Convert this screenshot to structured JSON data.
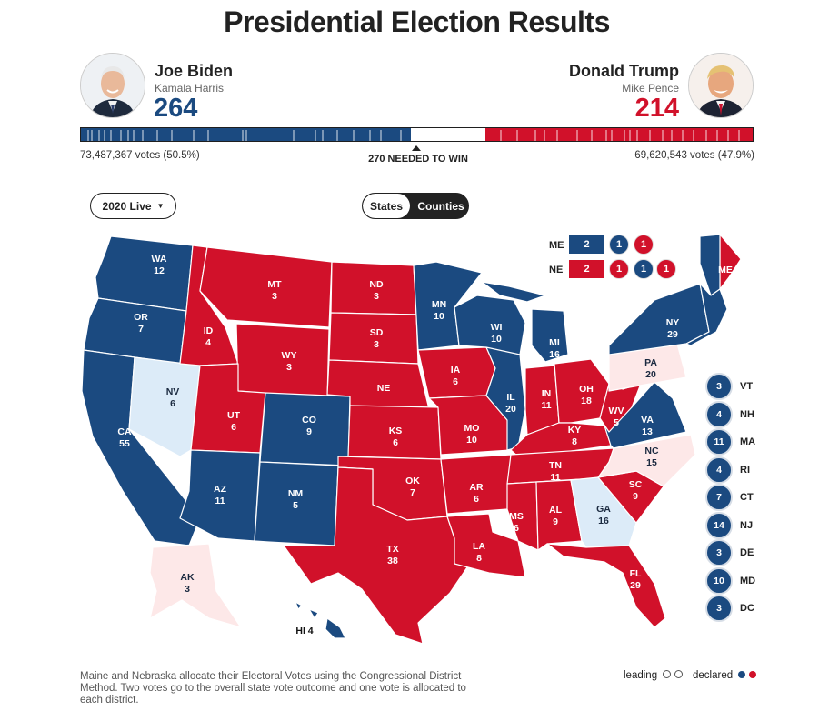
{
  "title": "Presidential Election Results",
  "colors": {
    "dem": "#1b4a80",
    "rep": "#d1112a",
    "dem_leading": "#dcebf8",
    "rep_leading": "#fde8e8"
  },
  "biden": {
    "name": "Joe Biden",
    "vp": "Kamala Harris",
    "ev": "264",
    "popular": "73,487,367 votes (50.5%)",
    "avatar_icon": "biden-portrait"
  },
  "trump": {
    "name": "Donald Trump",
    "vp": "Mike Pence",
    "ev": "214",
    "popular": "69,620,543 votes (47.9%)",
    "avatar_icon": "trump-portrait"
  },
  "votebar": {
    "dem_ev": 264,
    "rep_ev": 214,
    "total": 538,
    "needed_label": "270 NEEDED TO WIN"
  },
  "controls": {
    "year_select": "2020 Live",
    "toggle_states": "States",
    "toggle_counties": "Counties"
  },
  "maine_districts": {
    "label": "ME",
    "at_large": "2",
    "districts": [
      "1",
      "1"
    ]
  },
  "nebraska_districts": {
    "label": "NE",
    "at_large": "2",
    "districts": [
      "1",
      "1",
      "1"
    ]
  },
  "small_states": [
    {
      "ev": "3",
      "abbr": "VT"
    },
    {
      "ev": "4",
      "abbr": "NH"
    },
    {
      "ev": "11",
      "abbr": "MA"
    },
    {
      "ev": "4",
      "abbr": "RI"
    },
    {
      "ev": "7",
      "abbr": "CT"
    },
    {
      "ev": "14",
      "abbr": "NJ"
    },
    {
      "ev": "3",
      "abbr": "DE"
    },
    {
      "ev": "10",
      "abbr": "MD"
    },
    {
      "ev": "3",
      "abbr": "DC"
    }
  ],
  "states": {
    "WA": "12",
    "OR": "7",
    "CA": "55",
    "NV": "6",
    "ID": "4",
    "MT": "3",
    "WY": "3",
    "UT": "6",
    "AZ": "11",
    "CO": "9",
    "NM": "5",
    "ND": "3",
    "SD": "3",
    "NE": "",
    "KS": "6",
    "OK": "7",
    "TX": "38",
    "MN": "10",
    "IA": "6",
    "MO": "10",
    "AR": "6",
    "LA": "8",
    "WI": "10",
    "IL": "20",
    "MI": "16",
    "IN": "11",
    "OH": "18",
    "KY": "8",
    "TN": "11",
    "MS": "6",
    "AL": "9",
    "GA": "16",
    "FL": "29",
    "SC": "9",
    "NC": "15",
    "VA": "13",
    "WV": "5",
    "PA": "20",
    "NY": "29",
    "ME": "",
    "AK": "3",
    "HI": "4"
  },
  "legend": {
    "leading": "leading",
    "declared": "declared"
  },
  "footnote": "Maine and Nebraska allocate their Electoral Votes using the Congressional District Method. Two votes go to the overall state vote outcome and one vote is allocated to each district."
}
